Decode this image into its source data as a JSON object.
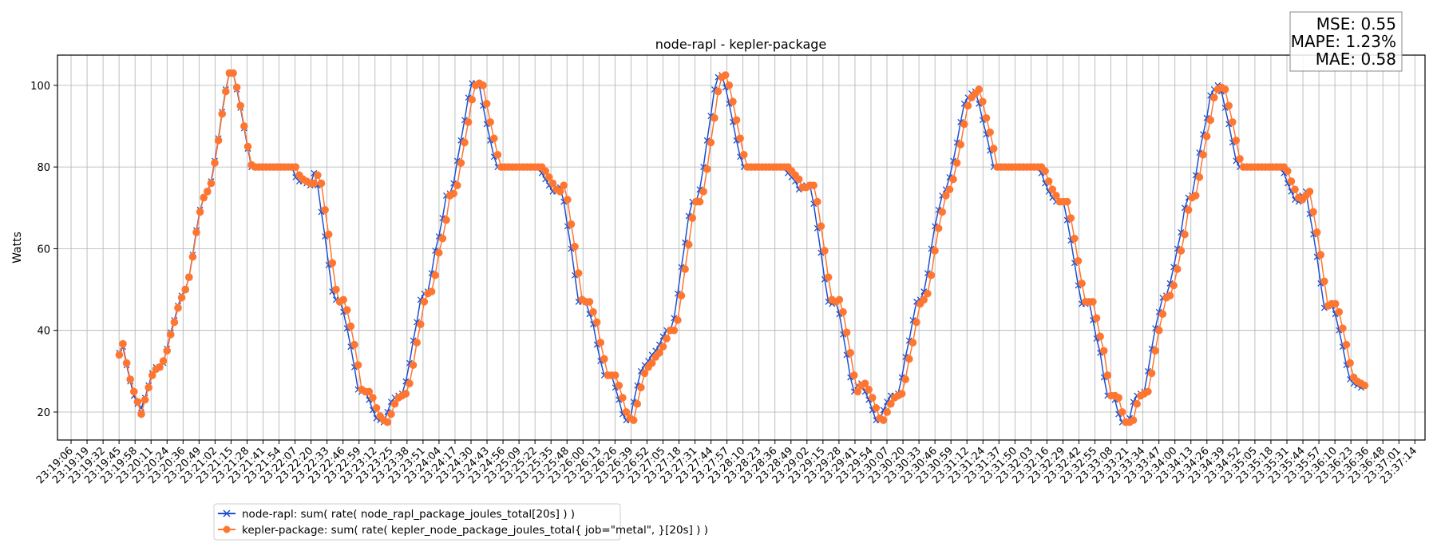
{
  "chart_data": {
    "type": "line",
    "title": "node-rapl - kepler-package",
    "xlabel": "",
    "ylabel": "Watts",
    "x_unit": "seconds after 23:19:06",
    "xlim": [
      -11,
      1096
    ],
    "ylim": [
      13.15,
      107.4
    ],
    "grid": true,
    "legend_position": "bottom-left-outside",
    "yticks": [
      20,
      40,
      60,
      80,
      100
    ],
    "xtick_step_seconds": 12.95,
    "xtick_labels": [
      "23:19:06",
      "23:19:19",
      "23:19:32",
      "23:19:45",
      "23:19:58",
      "23:20:11",
      "23:20:24",
      "23:20:36",
      "23:20:49",
      "23:21:02",
      "23:21:15",
      "23:21:28",
      "23:21:41",
      "23:21:54",
      "23:22:07",
      "23:22:20",
      "23:22:33",
      "23:22:46",
      "23:22:59",
      "23:23:12",
      "23:23:25",
      "23:23:38",
      "23:23:51",
      "23:24:04",
      "23:24:17",
      "23:24:30",
      "23:24:43",
      "23:24:56",
      "23:25:09",
      "23:25:22",
      "23:25:35",
      "23:25:48",
      "23:26:00",
      "23:26:13",
      "23:26:26",
      "23:26:39",
      "23:26:52",
      "23:27:05",
      "23:27:18",
      "23:27:31",
      "23:27:44",
      "23:27:57",
      "23:28:10",
      "23:28:23",
      "23:28:36",
      "23:28:49",
      "23:29:02",
      "23:29:15",
      "23:29:28",
      "23:29:41",
      "23:29:54",
      "23:30:07",
      "23:30:20",
      "23:30:33",
      "23:30:46",
      "23:30:59",
      "23:31:12",
      "23:31:24",
      "23:31:37",
      "23:31:50",
      "23:32:03",
      "23:32:16",
      "23:32:29",
      "23:32:42",
      "23:32:55",
      "23:33:08",
      "23:33:21",
      "23:33:34",
      "23:33:47",
      "23:34:00",
      "23:34:13",
      "23:34:26",
      "23:34:39",
      "23:34:52",
      "23:35:05",
      "23:35:18",
      "23:35:31",
      "23:35:44",
      "23:35:57",
      "23:36:10",
      "23:36:23",
      "23:36:36",
      "23:36:48",
      "23:37:01",
      "23:37:14"
    ],
    "x_start": 39.0,
    "x_step": 2.974,
    "series": [
      {
        "name": "node-rapl: sum( rate( node_rapl_package_joules_total[20s] ) )",
        "color": "#1f4fcf",
        "marker": "x",
        "values": [
          34.5,
          36,
          31.5,
          27.5,
          24,
          22,
          21,
          23.5,
          26.5,
          29.5,
          31,
          31,
          32,
          35.5,
          39.5,
          42.5,
          46,
          48.5,
          50,
          53,
          58.5,
          64.5,
          69.5,
          72.5,
          74,
          76.5,
          81.5,
          87,
          93.5,
          99,
          103,
          103,
          99,
          94.5,
          89.5,
          84.5,
          80,
          80,
          80,
          80,
          80,
          80,
          80,
          80,
          80,
          80,
          80,
          80,
          77.5,
          76.5,
          76.5,
          76,
          75.5,
          78.5,
          75.5,
          69,
          63,
          56,
          49.5,
          47.5,
          47.5,
          44.5,
          40.5,
          36,
          31,
          25.5,
          25,
          25,
          23,
          20.5,
          18.5,
          18,
          17.5,
          20,
          22.5,
          23.5,
          24,
          24.5,
          27.5,
          32,
          37.5,
          42,
          47.5,
          49,
          49.5,
          54,
          59.5,
          63,
          67.5,
          73,
          73.5,
          76,
          81.5,
          86.5,
          91.5,
          97,
          100.5,
          100.5,
          100,
          95,
          90.5,
          86.5,
          82.5,
          80,
          80,
          80,
          80,
          80,
          80,
          80,
          80,
          80,
          80,
          80,
          80,
          78.5,
          77,
          75.5,
          74,
          74,
          75,
          71.5,
          65.5,
          60,
          53.5,
          47,
          47,
          47,
          44,
          41.5,
          36.5,
          32.5,
          29,
          29,
          29,
          26,
          23,
          19.5,
          18,
          18,
          22.5,
          26.5,
          30,
          31.5,
          32.5,
          34,
          35,
          36.5,
          38.5,
          40,
          40,
          43,
          49,
          55.5,
          61.5,
          68,
          71.5,
          71.5,
          74.5,
          80,
          86.5,
          92.5,
          99,
          102,
          102.5,
          99.5,
          95.5,
          91,
          86.5,
          82.5,
          80,
          80,
          80,
          80,
          80,
          80,
          80,
          80,
          80,
          80,
          80,
          80,
          78.5,
          77.5,
          76.5,
          74.5,
          75,
          75.5,
          75.5,
          71,
          65,
          59,
          52.5,
          47,
          46.5,
          47,
          44,
          39,
          34,
          28.5,
          25,
          26.5,
          27,
          25,
          23,
          20.5,
          18,
          18,
          20.5,
          22.5,
          24,
          24,
          24.5,
          28.5,
          33.5,
          37.5,
          42.5,
          47,
          47.5,
          49.5,
          54,
          60,
          65.5,
          69.5,
          73,
          74.5,
          77.5,
          81.5,
          86,
          91,
          95.5,
          97,
          98,
          98.5,
          95.5,
          91.5,
          88,
          84,
          80,
          80,
          80,
          80,
          80,
          80,
          80,
          80,
          80,
          80,
          80,
          80,
          80,
          78.5,
          76,
          74,
          72.5,
          71.5,
          71.5,
          71.5,
          67,
          62,
          56.5,
          51,
          46.5,
          46.5,
          47,
          42.5,
          38,
          34.5,
          28.5,
          24,
          24,
          23,
          19.5,
          17.5,
          17.5,
          18.5,
          22.5,
          24,
          24.5,
          25,
          30,
          35.5,
          40.5,
          44.5,
          48,
          48.5,
          51.5,
          55.5,
          60,
          64,
          70,
          72.5,
          73,
          78,
          83.5,
          88,
          92,
          97.5,
          99,
          100,
          98.5,
          94.5,
          90.5,
          86,
          81.5,
          80,
          80,
          80,
          80,
          80,
          80,
          80,
          80,
          80,
          80,
          80,
          80,
          78.5,
          76,
          74,
          72,
          71.5,
          73,
          74,
          68.5,
          63.5,
          58,
          51.5,
          45.5,
          46,
          46,
          44,
          40,
          36,
          31.5,
          28,
          27,
          26.5,
          26
        ]
      },
      {
        "name": "kepler-package: sum( rate( kepler_node_package_joules_total{ job=\"metal\", }[20s] ) )",
        "color": "#ff7631",
        "marker": "o",
        "values": [
          34,
          36.7,
          32,
          28,
          25,
          22.5,
          19.5,
          23,
          26,
          29,
          30.5,
          31,
          32.5,
          35,
          39,
          42,
          45.5,
          48,
          50,
          53,
          58,
          64,
          69,
          72.5,
          74,
          76,
          81,
          86.5,
          93,
          98.5,
          103,
          103,
          99.5,
          95,
          90,
          85,
          80.5,
          80,
          80,
          80,
          80,
          80,
          80,
          80,
          80,
          80,
          80,
          80,
          80,
          78,
          77,
          76.5,
          76,
          76,
          78,
          76,
          69.5,
          63.5,
          56.5,
          50,
          47,
          47.5,
          45,
          41,
          36.5,
          31.5,
          25.5,
          25,
          25,
          23.5,
          21,
          19,
          18,
          17.5,
          19.5,
          22,
          23.5,
          24,
          24.5,
          27,
          31.5,
          37,
          41.5,
          47,
          49,
          49.5,
          53.5,
          59,
          62.5,
          67,
          73,
          73.5,
          75.5,
          81,
          86,
          91,
          96.5,
          100,
          100.5,
          100,
          95.5,
          91,
          87,
          83,
          80,
          80,
          80,
          80,
          80,
          80,
          80,
          80,
          80,
          80,
          80,
          80,
          79,
          77.5,
          76,
          74.5,
          74,
          75.5,
          72,
          66,
          60.5,
          54,
          47.5,
          47,
          47,
          44.5,
          42,
          37,
          33,
          29,
          29,
          29,
          26.5,
          23.5,
          20,
          18.5,
          18,
          22,
          26,
          29.5,
          31,
          32,
          33.5,
          34.5,
          36,
          38,
          40,
          40,
          42.5,
          48.5,
          55,
          61,
          67.5,
          71.5,
          71.5,
          74,
          79.5,
          86,
          92,
          98.5,
          102,
          102.5,
          100,
          96,
          91.5,
          87,
          83,
          80,
          80,
          80,
          80,
          80,
          80,
          80,
          80,
          80,
          80,
          80,
          80,
          79,
          78,
          77,
          75,
          75,
          75.5,
          75.5,
          71.5,
          65.5,
          59.5,
          53,
          47.5,
          47,
          47.5,
          44.5,
          39.5,
          34.5,
          29,
          25,
          26.5,
          27,
          25.5,
          23.5,
          21,
          18.5,
          18,
          20,
          22,
          23.5,
          24,
          24.5,
          28,
          33,
          37,
          42,
          46.5,
          47.5,
          49,
          53.5,
          59.5,
          65,
          69,
          73,
          74.5,
          77,
          81,
          85.5,
          90.5,
          95,
          97,
          98,
          99,
          96,
          92,
          88.5,
          84.5,
          80,
          80,
          80,
          80,
          80,
          80,
          80,
          80,
          80,
          80,
          80,
          80,
          80,
          79,
          76.5,
          74.5,
          73,
          71.5,
          71.5,
          71.5,
          67.5,
          62.5,
          57,
          51.5,
          47,
          47,
          47,
          43,
          38.5,
          35,
          29,
          24,
          24,
          23.5,
          20,
          17.5,
          17.5,
          18,
          22,
          24,
          24.5,
          25,
          29.5,
          35,
          40,
          44,
          48,
          48.5,
          51,
          55,
          59.5,
          63.5,
          69.5,
          72.5,
          73,
          77.5,
          83,
          87.5,
          91.5,
          97,
          99,
          99.5,
          99,
          95,
          91,
          86.5,
          82,
          80,
          80,
          80,
          80,
          80,
          80,
          80,
          80,
          80,
          80,
          80,
          80,
          79,
          76.5,
          74.5,
          72.5,
          72,
          73,
          74,
          69,
          64,
          58.5,
          52,
          46,
          46.5,
          46.5,
          44.5,
          40.5,
          36.5,
          32,
          28.5,
          27.5,
          27,
          26.5
        ]
      }
    ],
    "stats": [
      "MSE: 0.55",
      "MAPE: 1.23%",
      "MAE: 0.58"
    ]
  }
}
